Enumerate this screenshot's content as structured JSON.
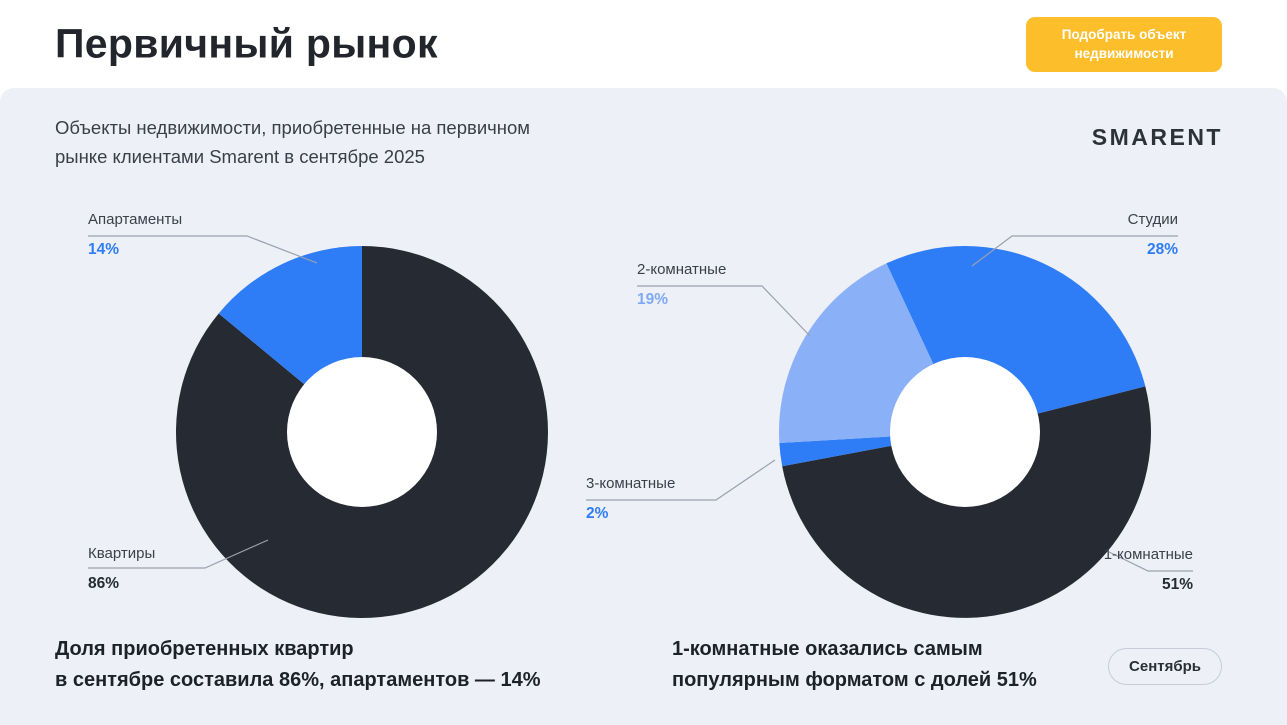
{
  "header": {
    "title": "Первичный рынок",
    "cta": {
      "label_line1": "Подобрать объект",
      "label_line2": "недвижимости"
    }
  },
  "intro": {
    "line1": "Объекты недвижимости, приобретенные на первичном",
    "line2": "рынке клиентами Smarent в сентябре 2025"
  },
  "brand": "SMARENT",
  "period_badge": "Сентябрь",
  "chart_data": [
    {
      "type": "pie",
      "donut": true,
      "start_angle": 0,
      "legend_position": "callout-labels",
      "slices": [
        {
          "label": "Квартиры",
          "value": 86,
          "pct": "86%",
          "color": "#262a33"
        },
        {
          "label": "Апартаменты",
          "value": 14,
          "pct": "14%",
          "color": "#2e7df7"
        }
      ]
    },
    {
      "type": "pie",
      "donut": true,
      "start_angle": -25,
      "legend_position": "callout-labels",
      "slices": [
        {
          "label": "Студии",
          "value": 28,
          "pct": "28%",
          "color": "#2e7df7"
        },
        {
          "label": "1-комнатные",
          "value": 51,
          "pct": "51%",
          "color": "#262a33"
        },
        {
          "label": "3-комнатные",
          "value": 2,
          "pct": "2%",
          "color": "#2e7df7"
        },
        {
          "label": "2-комнатные",
          "value": 19,
          "pct": "19%",
          "color": "#8ab0f7"
        }
      ]
    }
  ],
  "captions": {
    "left_line1": "Доля приобретенных квартир",
    "left_line2": "в сентябре составила 86%, апартаментов — 14%",
    "right_line1": "1-комнатные оказались самым",
    "right_line2": "популярным форматом с долей 51%"
  },
  "colors": {
    "accent_blue": "#2e7df7",
    "light_blue": "#8ab0f7",
    "dark": "#262a33",
    "cta_yellow": "#fcbe2b",
    "background": "#edf0f6"
  }
}
